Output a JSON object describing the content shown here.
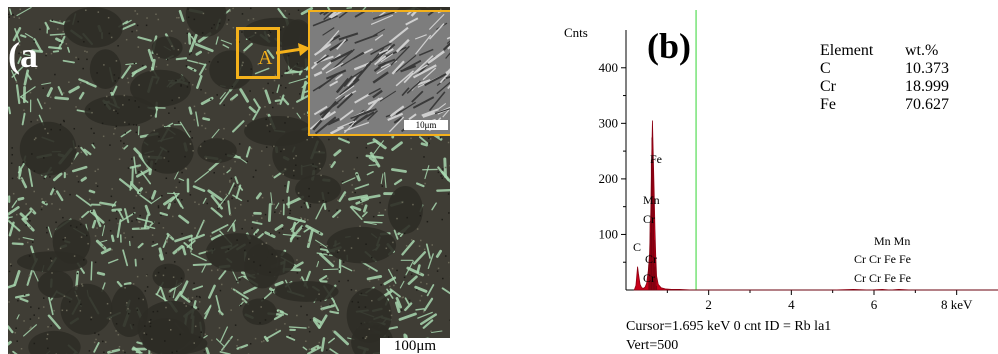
{
  "panel_a": {
    "label": "(a",
    "region_label": "A",
    "scale_bar": "100μm",
    "inset_scale_bar": "10μm"
  },
  "panel_b": {
    "label": "(b)",
    "y_axis_label": "Cnts",
    "cursor_text": "Cursor=1.695 keV   0 cnt  ID = Rb la1",
    "vert_text": "Vert=500",
    "composition_table": {
      "headers": [
        "Element",
        "wt.%"
      ],
      "rows": [
        {
          "element": "C",
          "wt": "10.373"
        },
        {
          "element": "Cr",
          "wt": "18.999"
        },
        {
          "element": "Fe",
          "wt": "70.627"
        }
      ]
    },
    "peak_labels": [
      "Fe",
      "Mn",
      "Cr",
      "C",
      "Cr",
      "Cr",
      "Mn Mn",
      "Cr  Cr Fe   Fe",
      "Cr  Cr Fe   Fe"
    ]
  },
  "chart_data": {
    "type": "line",
    "title": "",
    "xlabel": "",
    "ylabel": "Cnts",
    "x_unit": "keV",
    "xlim": [
      0,
      9
    ],
    "ylim": [
      0,
      450
    ],
    "x_ticks": [
      2,
      4,
      6,
      8
    ],
    "x_tick_labels": [
      "2",
      "4",
      "6",
      "8 keV"
    ],
    "y_ticks": [
      100,
      200,
      300,
      400
    ],
    "cursor_keV": 1.695,
    "series": [
      {
        "x": [
          0.2,
          0.24,
          0.26,
          0.28,
          0.3,
          0.34,
          0.38,
          0.42,
          0.46,
          0.5,
          0.54,
          0.57,
          0.6,
          0.62,
          0.64,
          0.66,
          0.68,
          0.7,
          0.72,
          0.74,
          0.78,
          0.85,
          0.95,
          1.1,
          1.3,
          1.6,
          2.0,
          3.0,
          4.0,
          5.0,
          5.5,
          5.9,
          6.2,
          6.4,
          6.6,
          6.9,
          7.1,
          7.5,
          8.0,
          9.0
        ],
        "y": [
          0,
          8,
          25,
          42,
          30,
          10,
          4,
          3,
          5,
          12,
          35,
          65,
          140,
          230,
          305,
          240,
          180,
          110,
          60,
          25,
          10,
          4,
          2,
          1,
          1,
          0,
          0,
          0,
          0,
          0,
          1,
          0,
          1,
          0,
          1,
          0,
          0,
          0,
          0,
          0
        ]
      }
    ]
  }
}
